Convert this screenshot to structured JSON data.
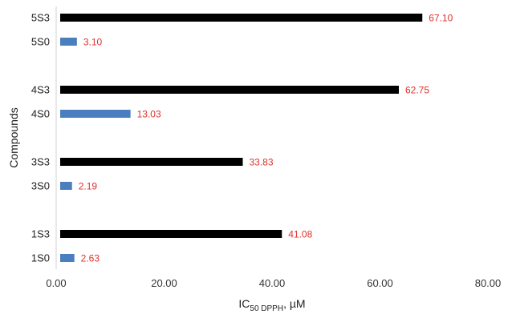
{
  "chart_data": {
    "type": "bar",
    "orientation": "horizontal",
    "categories": [
      "1S0",
      "1S3",
      "3S0",
      "3S3",
      "4S0",
      "4S3",
      "5S0",
      "5S3"
    ],
    "values": [
      2.63,
      41.08,
      2.19,
      33.83,
      13.03,
      62.75,
      3.1,
      67.1
    ],
    "value_labels": [
      "2.63",
      "41.08",
      "2.19",
      "33.83",
      "13.03",
      "62.75",
      "3.10",
      "67.10"
    ],
    "bar_colors": [
      "#4a7ebf",
      "#000000",
      "#4a7ebf",
      "#000000",
      "#4a7ebf",
      "#000000",
      "#4a7ebf",
      "#000000"
    ],
    "label_color": "#e0312c",
    "xlabel": {
      "main": "IC",
      "sub": "50 DPPH",
      "suffix": ", µM"
    },
    "ylabel": "Compounds",
    "xlim": [
      0,
      80
    ],
    "xticks": [
      "0.00",
      "20.00",
      "40.00",
      "60.00",
      "80.00"
    ],
    "grid": false,
    "legend": "none"
  }
}
